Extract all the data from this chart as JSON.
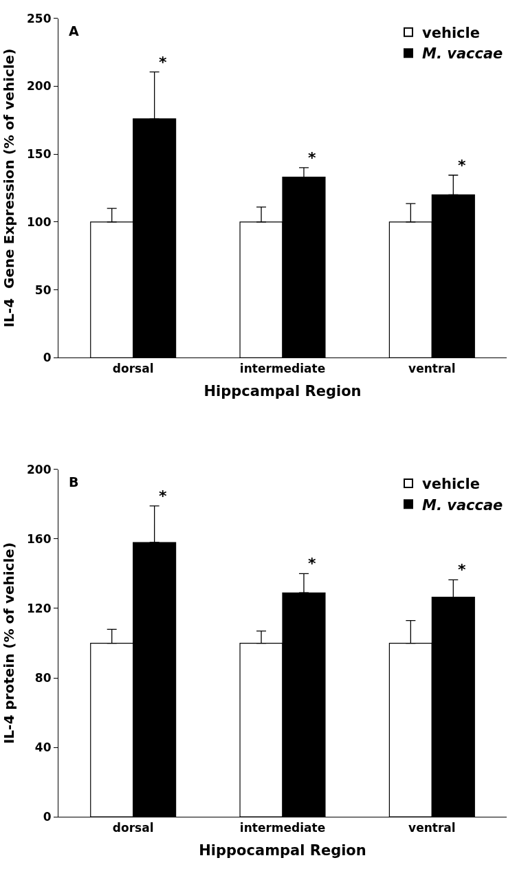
{
  "chart_data": [
    {
      "type": "bar",
      "categories": [
        "dorsal",
        "intermediate",
        "ventral"
      ],
      "xlabel": "Hippcampal Region",
      "ylabel": "IL-4  Gene Expression (% of vehicle)",
      "ylim": [
        0,
        250
      ],
      "yticks": [
        0,
        50,
        100,
        150,
        200,
        250
      ],
      "legend": "top right",
      "series": [
        {
          "name": "vehicle",
          "color": "#ffffff",
          "values": [
            100,
            100,
            100
          ],
          "errors": [
            [
              100,
              110
            ],
            [
              100,
              111
            ],
            [
              100,
              113.5
            ]
          ]
        },
        {
          "name": "M. vaccae",
          "color": "#000000",
          "values": [
            176,
            133,
            120
          ],
          "errors": [
            [
              176,
              210.5
            ],
            [
              133,
              140
            ],
            [
              120,
              134.5
            ]
          ]
        }
      ],
      "annotations": [
        "A",
        "*",
        "*",
        "*"
      ]
    },
    {
      "type": "bar",
      "categories": [
        "dorsal",
        "intermediate",
        "ventral"
      ],
      "xlabel": "Hippocampal Region",
      "ylabel": "IL-4 protein (% of vehicle)",
      "ylim": [
        0,
        200
      ],
      "yticks": [
        0,
        40,
        80,
        120,
        160,
        200
      ],
      "legend": "top right",
      "series": [
        {
          "name": "vehicle",
          "color": "#ffffff",
          "values": [
            100,
            100,
            100
          ],
          "errors": [
            [
              100,
              108
            ],
            [
              100,
              107
            ],
            [
              100,
              113
            ]
          ]
        },
        {
          "name": "M. vaccae",
          "color": "#000000",
          "values": [
            158,
            129,
            126.5
          ],
          "errors": [
            [
              158,
              179
            ],
            [
              129,
              140
            ],
            [
              126.5,
              136.5
            ]
          ]
        }
      ],
      "annotations": [
        "B",
        "*",
        "*",
        "*"
      ]
    }
  ]
}
